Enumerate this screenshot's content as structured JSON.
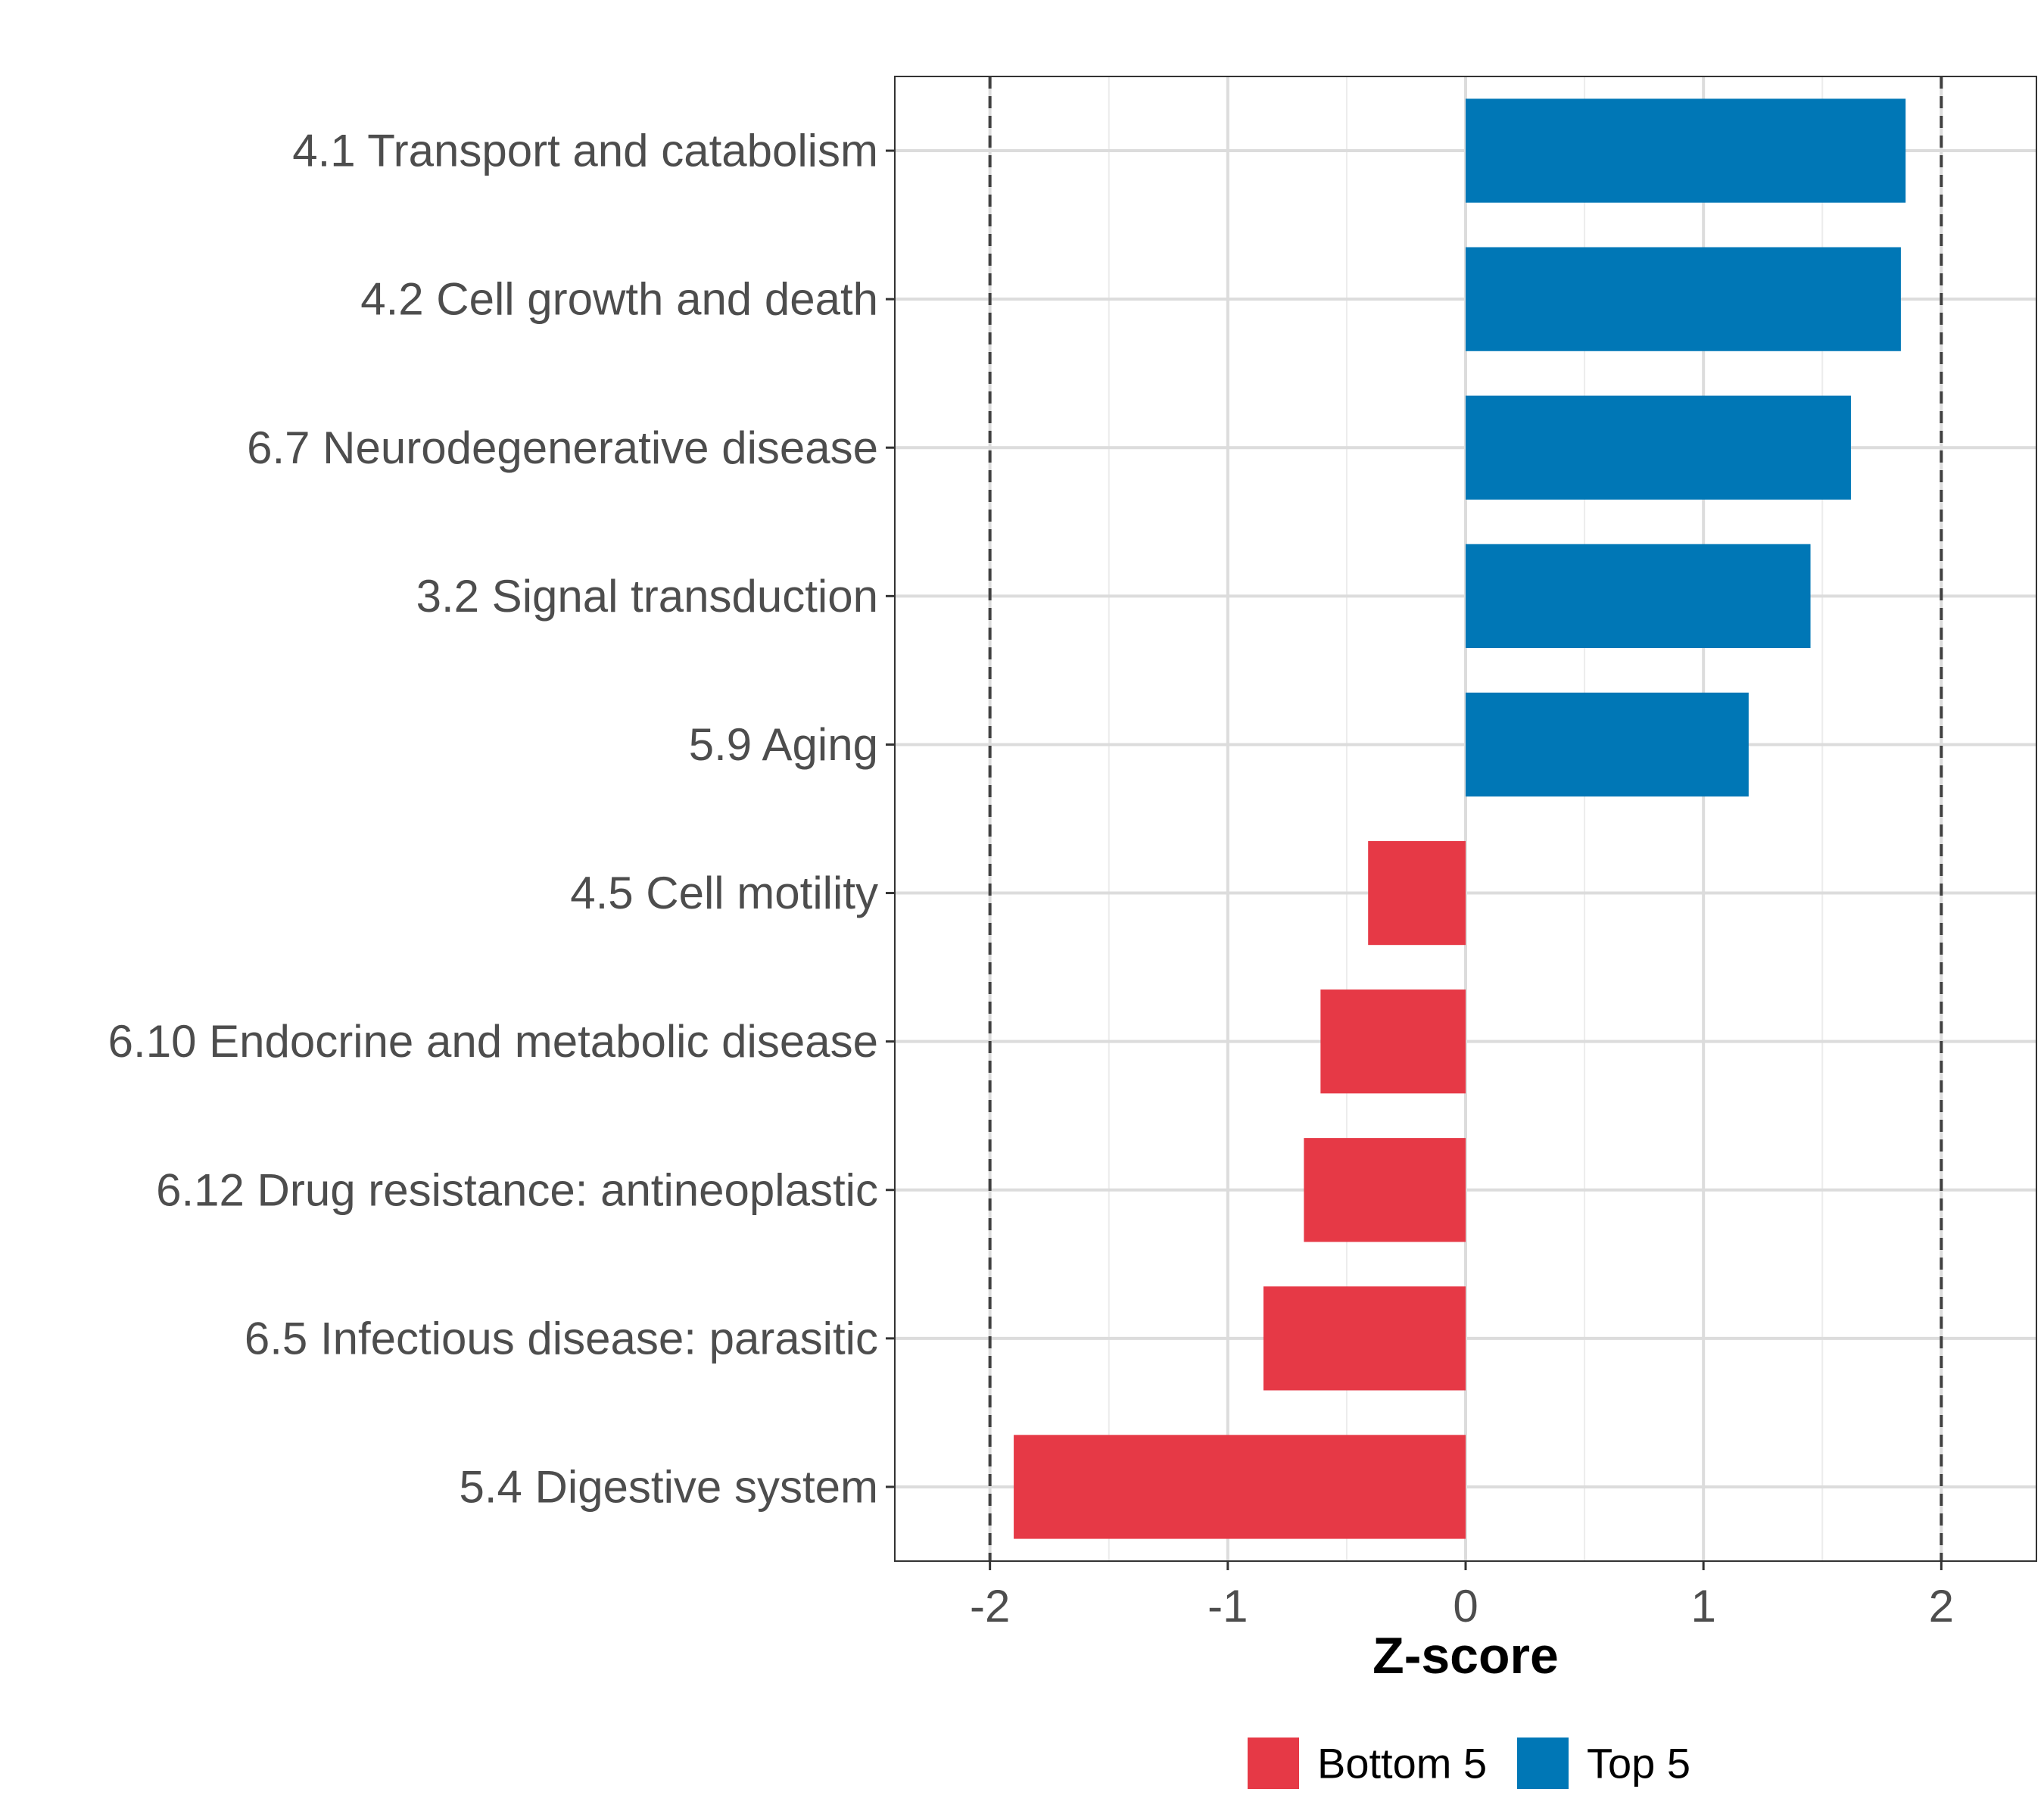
{
  "chart_data": {
    "type": "bar",
    "orientation": "horizontal",
    "title": "",
    "xlabel": "Z-score",
    "ylabel": "",
    "xlim": [
      -2.4,
      2.4
    ],
    "x_ticks": [
      -2,
      -1,
      0,
      1,
      2
    ],
    "x_tick_labels": [
      "-2",
      "-1",
      "0",
      "1",
      "2"
    ],
    "reference_lines": [
      -2,
      2
    ],
    "grid": true,
    "legend_position": "bottom",
    "categories": [
      "4.1 Transport and catabolism",
      "4.2 Cell growth and death",
      "6.7 Neurodegenerative disease",
      "3.2 Signal transduction",
      "5.9 Aging",
      "4.5 Cell motility",
      "6.10 Endocrine and metabolic disease",
      "6.12 Drug resistance: antineoplastic",
      "6.5 Infectious disease: parasitic",
      "5.4 Digestive system"
    ],
    "values": [
      1.85,
      1.83,
      1.62,
      1.45,
      1.19,
      -0.41,
      -0.61,
      -0.68,
      -0.85,
      -1.9
    ],
    "groups": [
      "Top 5",
      "Top 5",
      "Top 5",
      "Top 5",
      "Top 5",
      "Bottom 5",
      "Bottom 5",
      "Bottom 5",
      "Bottom 5",
      "Bottom 5"
    ],
    "legend": [
      {
        "name": "Bottom 5",
        "color": "#e63946"
      },
      {
        "name": "Top 5",
        "color": "#0077b6"
      }
    ]
  }
}
